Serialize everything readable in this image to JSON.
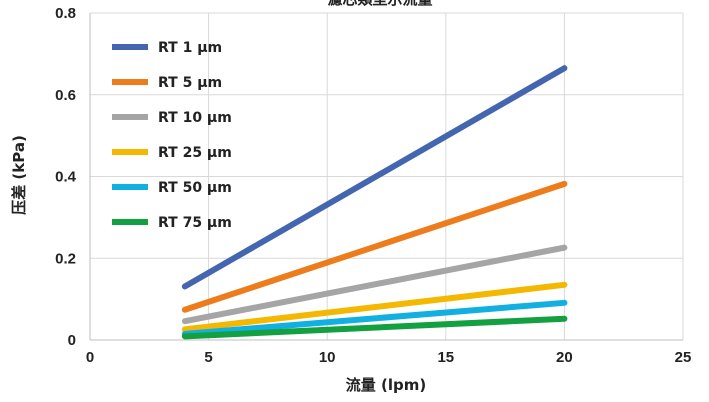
{
  "chart_data": {
    "type": "line",
    "title": "濾芯類型示流量",
    "xlabel": "流量 (lpm)",
    "ylabel": "压差 (kPa)",
    "xlim": [
      0,
      25
    ],
    "ylim": [
      0,
      0.8
    ],
    "xticks": [
      0,
      5,
      10,
      15,
      20,
      25
    ],
    "yticks": [
      0,
      0.2,
      0.4,
      0.6,
      0.8
    ],
    "xtick_labels": [
      "0",
      "5",
      "10",
      "15",
      "20",
      "25"
    ],
    "ytick_labels": [
      "0",
      "0.2",
      "0.4",
      "0.6",
      "0.8"
    ],
    "grid": true,
    "legend_position": "top-left",
    "series": [
      {
        "name": "RT 1 µm",
        "color": "#4466b0",
        "x": [
          4,
          20
        ],
        "y": [
          0.131,
          0.665
        ]
      },
      {
        "name": "RT 5 µm",
        "color": "#ed7d1c",
        "x": [
          4,
          20
        ],
        "y": [
          0.074,
          0.382
        ]
      },
      {
        "name": "RT 10 µm",
        "color": "#a5a5a5",
        "x": [
          4,
          20
        ],
        "y": [
          0.046,
          0.226
        ]
      },
      {
        "name": "RT 25 µm",
        "color": "#f5b800",
        "x": [
          4,
          20
        ],
        "y": [
          0.026,
          0.135
        ]
      },
      {
        "name": "RT 50 µm",
        "color": "#12b0e0",
        "x": [
          4,
          20
        ],
        "y": [
          0.015,
          0.091
        ]
      },
      {
        "name": "RT 75 µm",
        "color": "#12a040",
        "x": [
          4,
          20
        ],
        "y": [
          0.009,
          0.052
        ]
      }
    ]
  }
}
